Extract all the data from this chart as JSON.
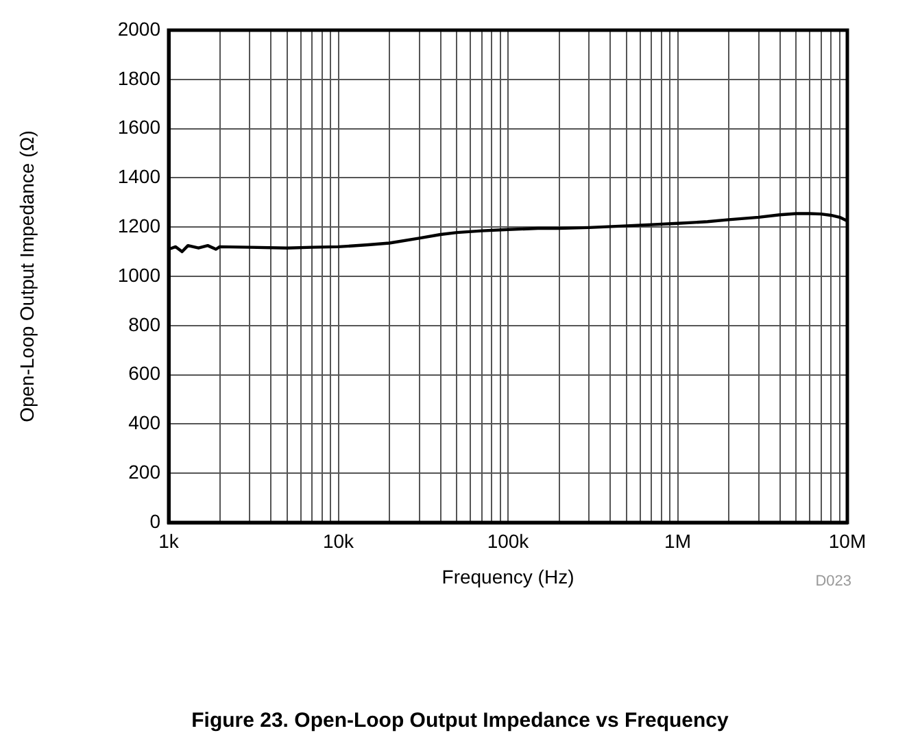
{
  "chart_data": {
    "type": "line",
    "xlabel": "Frequency (Hz)",
    "ylabel": "Open-Loop Output Impedance (Ω)",
    "annotations": [
      "D023",
      "Figure 23. Open-Loop Output Impedance vs Frequency"
    ],
    "log": "x",
    "grid": true,
    "marker": "none",
    "line_style": "solid",
    "xlim": [
      1000,
      10000000
    ],
    "xticks": [
      {
        "value": 1000,
        "label": "1k"
      },
      {
        "value": 2000,
        "label": null
      },
      {
        "value": 3000,
        "label": null
      },
      {
        "value": 4000,
        "label": null
      },
      {
        "value": 5000,
        "label": null
      },
      {
        "value": 6000,
        "label": null
      },
      {
        "value": 7000,
        "label": null
      },
      {
        "value": 8000,
        "label": null
      },
      {
        "value": 9000,
        "label": null
      },
      {
        "value": 10000,
        "label": "10k"
      },
      {
        "value": 20000,
        "label": null
      },
      {
        "value": 30000,
        "label": null
      },
      {
        "value": 40000,
        "label": null
      },
      {
        "value": 50000,
        "label": null
      },
      {
        "value": 60000,
        "label": null
      },
      {
        "value": 70000,
        "label": null
      },
      {
        "value": 80000,
        "label": null
      },
      {
        "value": 90000,
        "label": null
      },
      {
        "value": 100000,
        "label": "100k"
      },
      {
        "value": 200000,
        "label": null
      },
      {
        "value": 300000,
        "label": null
      },
      {
        "value": 400000,
        "label": null
      },
      {
        "value": 500000,
        "label": null
      },
      {
        "value": 600000,
        "label": null
      },
      {
        "value": 700000,
        "label": null
      },
      {
        "value": 800000,
        "label": null
      },
      {
        "value": 900000,
        "label": null
      },
      {
        "value": 1000000,
        "label": "1M"
      },
      {
        "value": 2000000,
        "label": null
      },
      {
        "value": 3000000,
        "label": null
      },
      {
        "value": 4000000,
        "label": null
      },
      {
        "value": 5000000,
        "label": null
      },
      {
        "value": 6000000,
        "label": null
      },
      {
        "value": 7000000,
        "label": null
      },
      {
        "value": 8000000,
        "label": null
      },
      {
        "value": 9000000,
        "label": null
      },
      {
        "value": 10000000,
        "label": "10M"
      }
    ],
    "ylim": [
      0,
      2000
    ],
    "yticks": [
      0,
      200,
      400,
      600,
      800,
      1000,
      1200,
      1400,
      1600,
      1800,
      2000
    ],
    "x": [
      1000,
      1100,
      1200,
      1300,
      1500,
      1700,
      1900,
      2000,
      3000,
      5000,
      7000,
      10000,
      15000,
      20000,
      30000,
      40000,
      50000,
      70000,
      100000,
      150000,
      200000,
      300000,
      500000,
      700000,
      1000000,
      1500000,
      2000000,
      3000000,
      4000000,
      5000000,
      6000000,
      7000000,
      8000000,
      9000000,
      10000000
    ],
    "series": [
      {
        "color": "#000000",
        "values": [
          1110,
          1120,
          1100,
          1125,
          1115,
          1125,
          1110,
          1120,
          1118,
          1115,
          1118,
          1120,
          1128,
          1135,
          1155,
          1170,
          1178,
          1185,
          1190,
          1195,
          1195,
          1198,
          1205,
          1210,
          1215,
          1222,
          1230,
          1240,
          1250,
          1255,
          1255,
          1253,
          1248,
          1240,
          1225
        ]
      }
    ]
  }
}
